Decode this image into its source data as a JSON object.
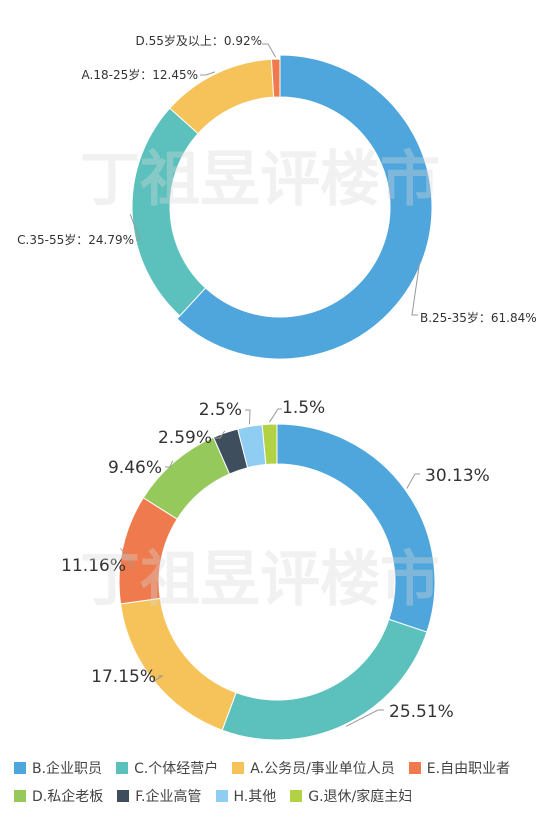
{
  "watermark": "丁祖昱评楼市",
  "chart_data": [
    {
      "type": "donut",
      "categories": [
        "B.25-35岁",
        "C.35-55岁",
        "A.18-25岁",
        "D.55岁及以上"
      ],
      "values": [
        61.84,
        24.79,
        12.45,
        0.92
      ],
      "labels": [
        "B.25-35岁：61.84%",
        "C.35-55岁：24.79%",
        "A.18-25岁：12.45%",
        "D.55岁及以上：0.92%"
      ],
      "colors": [
        "#4ea6dc",
        "#5cc1bd",
        "#f6c35b",
        "#ef7a4e"
      ]
    },
    {
      "type": "donut",
      "categories": [
        "B.企业职员",
        "C.个体经营户",
        "A.公务员/事业单位人员",
        "E.自由职业者",
        "D.私企老板",
        "F.企业高管",
        "H.其他",
        "G.退休/家庭主妇"
      ],
      "values": [
        30.13,
        25.51,
        17.15,
        11.16,
        9.46,
        2.59,
        2.5,
        1.5
      ],
      "labels": [
        "30.13%",
        "25.51%",
        "17.15%",
        "11.16%",
        "9.46%",
        "2.59%",
        "2.5%",
        "1.5%"
      ],
      "colors": [
        "#4ea6dc",
        "#5cc1bd",
        "#f6c35b",
        "#ef7a4e",
        "#95c95b",
        "#3f4e5c",
        "#8fcdf2",
        "#b3d145"
      ],
      "legend": [
        {
          "label": "B.企业职员",
          "color": "#4ea6dc"
        },
        {
          "label": "C.个体经营户",
          "color": "#5cc1bd"
        },
        {
          "label": "A.公务员/事业单位人员",
          "color": "#f6c35b"
        },
        {
          "label": "E.自由职业者",
          "color": "#ef7a4e"
        },
        {
          "label": "D.私企老板",
          "color": "#95c95b"
        },
        {
          "label": "F.企业高管",
          "color": "#3f4e5c"
        },
        {
          "label": "H.其他",
          "color": "#8fcdf2"
        },
        {
          "label": "G.退休/家庭主妇",
          "color": "#b3d145"
        }
      ]
    }
  ]
}
